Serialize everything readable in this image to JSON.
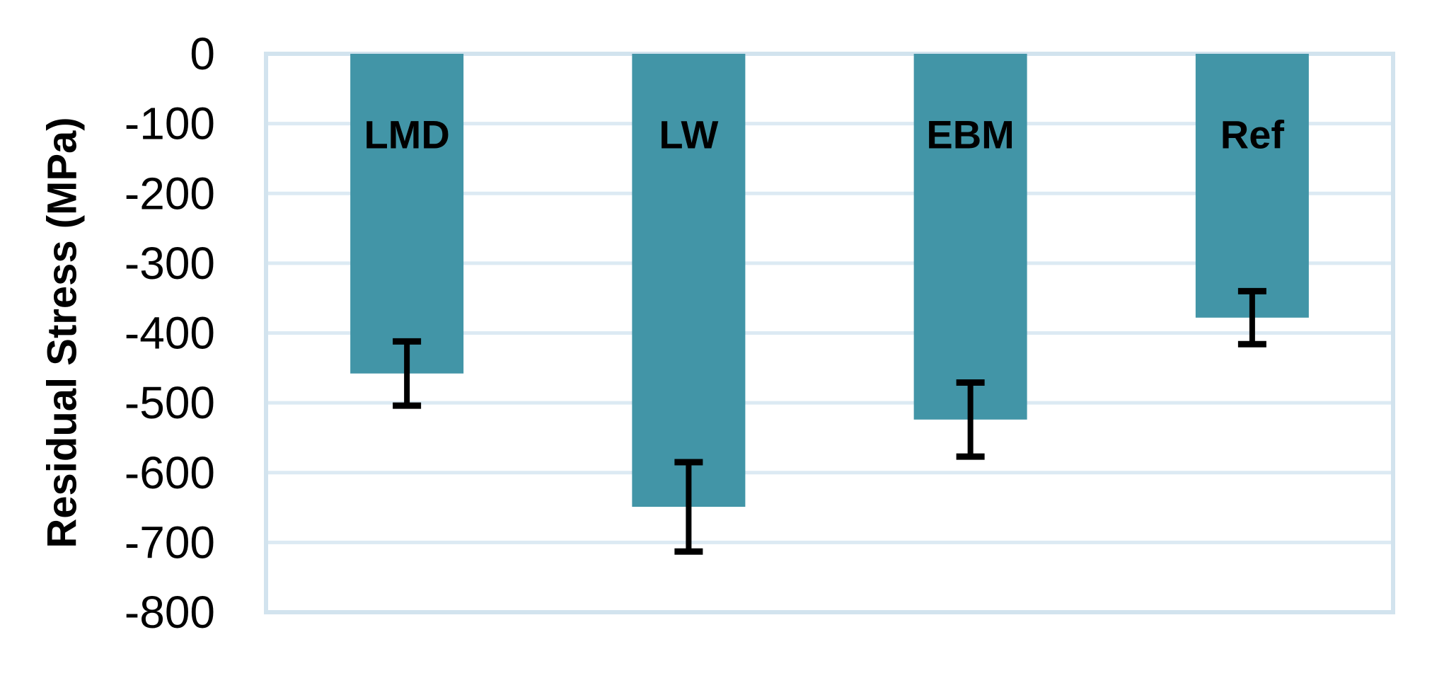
{
  "chart_data": {
    "type": "bar",
    "title": "",
    "xlabel": "",
    "ylabel": "Residual Stress (MPa)",
    "categories": [
      "LMD",
      "LW",
      "EBM",
      "Ref"
    ],
    "values": [
      -458,
      -649,
      -524,
      -378
    ],
    "errors": [
      46,
      64,
      53,
      38
    ],
    "ylim": [
      -800,
      0
    ],
    "ytick_interval": 100,
    "yticks": [
      0,
      -100,
      -200,
      -300,
      -400,
      -500,
      -600,
      -700,
      -800
    ],
    "ytick_labels": [
      "0",
      "-100",
      "-200",
      "-300",
      "-400",
      "-500",
      "-600",
      "-700",
      "-800"
    ],
    "grid": true,
    "legend": false,
    "category_label_position": "inside-top",
    "colors": {
      "bar_fill": "#4295A7",
      "gridline": "#DCEAF3",
      "plot_border": "#D2E3EE",
      "error_bar": "#000000",
      "text": "#000000",
      "background": "#FFFFFF"
    }
  }
}
